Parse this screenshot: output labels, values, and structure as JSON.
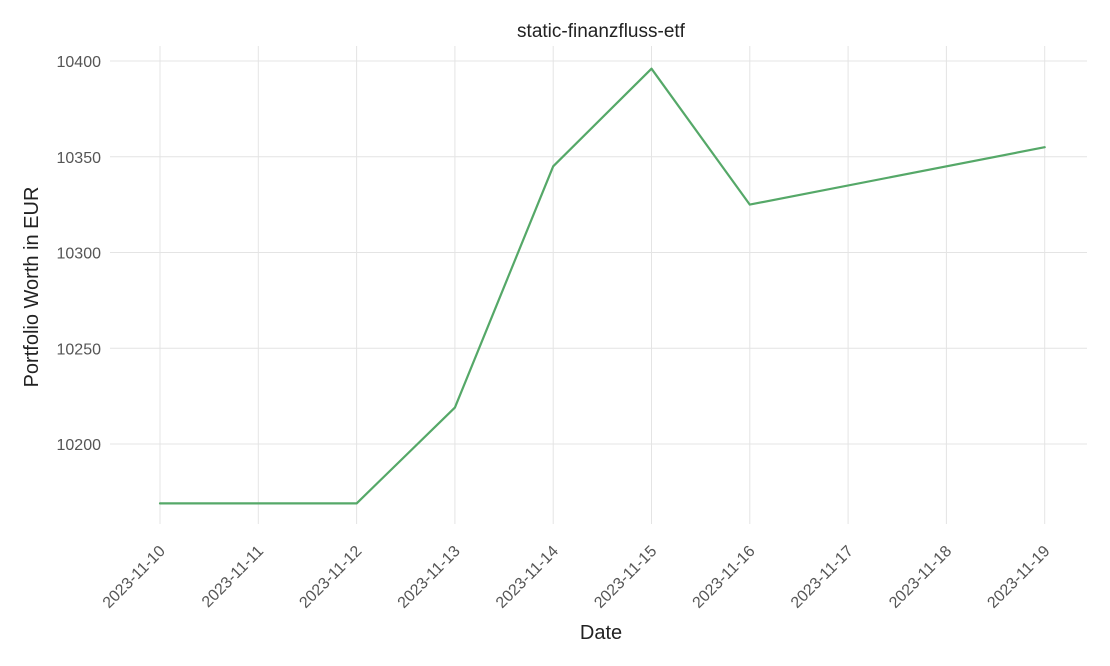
{
  "chart_data": {
    "type": "line",
    "title": "static-finanzfluss-etf",
    "xlabel": "Date",
    "ylabel": "Portfolio Worth in EUR",
    "x": [
      "2023-11-10",
      "2023-11-11",
      "2023-11-12",
      "2023-11-13",
      "2023-11-14",
      "2023-11-15",
      "2023-11-16",
      "2023-11-17",
      "2023-11-18",
      "2023-11-19"
    ],
    "yticks": [
      10200,
      10250,
      10300,
      10350,
      10400
    ],
    "ylim": [
      10163,
      10407
    ],
    "grid": true,
    "series": [
      {
        "values": [
          10169,
          10169,
          10169,
          10219,
          10345,
          10396,
          10325,
          null,
          null,
          10355
        ],
        "color": "#55a868"
      }
    ]
  }
}
